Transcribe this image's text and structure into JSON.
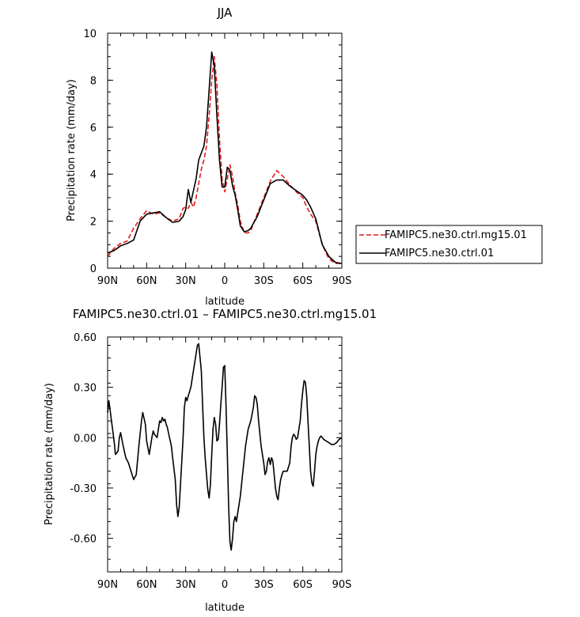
{
  "chart_data": [
    {
      "type": "line",
      "title": "JJA",
      "xlabel": "latitude",
      "ylabel": "Precipitation rate (mm/day)",
      "xlim": [
        90,
        -90
      ],
      "ylim": [
        0,
        10
      ],
      "x_ticks": [
        {
          "value": 90,
          "label": "90N"
        },
        {
          "value": 60,
          "label": "60N"
        },
        {
          "value": 30,
          "label": "30N"
        },
        {
          "value": 0,
          "label": "0"
        },
        {
          "value": -30,
          "label": "30S"
        },
        {
          "value": -60,
          "label": "60S"
        },
        {
          "value": -90,
          "label": "90S"
        }
      ],
      "y_ticks": [
        {
          "value": 0,
          "label": "0"
        },
        {
          "value": 2,
          "label": "2"
        },
        {
          "value": 4,
          "label": "4"
        },
        {
          "value": 6,
          "label": "6"
        },
        {
          "value": 8,
          "label": "8"
        },
        {
          "value": 10,
          "label": "10"
        }
      ],
      "legend_position": "right",
      "series": [
        {
          "name": "FAMIPC5.ne30.ctrl.mg15.01",
          "color": "#e41a1c",
          "style": "dashed",
          "x": [
            90,
            85,
            80,
            75,
            70,
            65,
            60,
            55,
            50,
            45,
            40,
            35,
            32,
            30,
            28,
            26,
            24,
            22,
            20,
            18,
            16,
            14,
            12,
            10,
            8,
            6,
            4,
            2,
            0,
            -2,
            -4,
            -6,
            -8,
            -10,
            -12,
            -15,
            -18,
            -20,
            -25,
            -30,
            -35,
            -40,
            -45,
            -50,
            -55,
            -60,
            -63,
            -66,
            -70,
            -75,
            -80,
            -85,
            -90
          ],
          "y": [
            0.5,
            0.85,
            1.05,
            1.15,
            1.7,
            2.1,
            2.45,
            2.3,
            2.35,
            2.15,
            2.0,
            2.1,
            2.55,
            2.6,
            2.55,
            2.8,
            2.6,
            3.0,
            3.6,
            4.2,
            4.6,
            5.2,
            6.5,
            8.0,
            9.0,
            7.8,
            5.5,
            3.8,
            3.25,
            3.8,
            4.4,
            3.9,
            3.2,
            2.7,
            2.0,
            1.5,
            1.5,
            1.6,
            2.3,
            3.0,
            3.7,
            4.15,
            3.9,
            3.55,
            3.25,
            3.0,
            2.6,
            2.3,
            2.0,
            1.0,
            0.4,
            0.2,
            0.2
          ]
        },
        {
          "name": "FAMIPC5.ne30.ctrl.01",
          "color": "#000000",
          "style": "solid",
          "x": [
            90,
            85,
            80,
            75,
            70,
            65,
            60,
            55,
            50,
            45,
            40,
            35,
            32,
            30,
            28,
            26,
            24,
            22,
            20,
            18,
            16,
            14,
            12,
            10,
            8,
            6,
            4,
            2,
            0,
            -2,
            -4,
            -6,
            -8,
            -10,
            -12,
            -15,
            -18,
            -20,
            -25,
            -30,
            -35,
            -40,
            -45,
            -50,
            -55,
            -60,
            -63,
            -66,
            -70,
            -75,
            -80,
            -85,
            -90
          ],
          "y": [
            0.65,
            0.75,
            0.95,
            1.05,
            1.2,
            2.0,
            2.3,
            2.35,
            2.4,
            2.15,
            1.95,
            2.0,
            2.2,
            2.5,
            3.35,
            2.8,
            3.3,
            3.8,
            4.6,
            4.9,
            5.2,
            6.0,
            7.6,
            9.2,
            8.6,
            6.5,
            4.6,
            3.45,
            3.45,
            4.3,
            4.15,
            3.5,
            3.1,
            2.5,
            1.8,
            1.55,
            1.6,
            1.7,
            2.2,
            2.9,
            3.6,
            3.75,
            3.75,
            3.5,
            3.3,
            3.1,
            2.9,
            2.6,
            2.1,
            1.0,
            0.5,
            0.25,
            0.2
          ]
        }
      ]
    },
    {
      "type": "line",
      "title": "FAMIPC5.ne30.ctrl.01 – FAMIPC5.ne30.ctrl.mg15.01",
      "xlabel": "latitude",
      "ylabel": "Precipitation rate (mm/day)",
      "xlim": [
        90,
        -90
      ],
      "ylim": [
        -0.8,
        0.6
      ],
      "x_ticks": [
        {
          "value": 90,
          "label": "90N"
        },
        {
          "value": 60,
          "label": "60N"
        },
        {
          "value": 30,
          "label": "30N"
        },
        {
          "value": 0,
          "label": "0"
        },
        {
          "value": -30,
          "label": "30S"
        },
        {
          "value": -60,
          "label": "60S"
        },
        {
          "value": -90,
          "label": "90S"
        }
      ],
      "y_ticks": [
        {
          "value": 0.6,
          "label": "0.60"
        },
        {
          "value": 0.3,
          "label": "0.30"
        },
        {
          "value": 0.0,
          "label": "0.00"
        },
        {
          "value": -0.3,
          "label": "-0.30"
        },
        {
          "value": -0.6,
          "label": "-0.60"
        }
      ],
      "series": [
        {
          "color": "#000000",
          "style": "solid",
          "x": [
            90,
            89,
            87,
            85,
            84,
            82,
            81,
            80,
            78,
            76,
            74,
            72,
            70,
            68,
            66,
            64,
            63,
            61,
            60,
            58,
            57,
            56,
            55,
            54,
            52,
            51,
            50,
            49,
            48,
            47,
            46,
            45,
            44,
            43,
            41,
            40,
            38,
            37,
            36,
            35,
            34,
            32,
            31,
            30,
            29,
            28,
            26,
            24,
            22,
            21,
            20,
            18,
            17,
            16,
            15,
            14,
            13,
            12,
            11,
            10,
            9,
            8,
            7,
            6,
            5,
            4,
            3,
            2,
            1,
            0,
            -1,
            -2,
            -3,
            -4,
            -5,
            -6,
            -7,
            -8,
            -9,
            -10,
            -12,
            -14,
            -16,
            -18,
            -20,
            -22,
            -23,
            -24,
            -25,
            -26,
            -28,
            -30,
            -31,
            -32,
            -33,
            -34,
            -35,
            -36,
            -37,
            -38,
            -39,
            -40,
            -41,
            -42,
            -43,
            -44,
            -45,
            -46,
            -48,
            -50,
            -51,
            -52,
            -53,
            -54,
            -55,
            -56,
            -57,
            -58,
            -59,
            -60,
            -61,
            -62,
            -63,
            -64,
            -65,
            -66,
            -67,
            -68,
            -69,
            -70,
            -71,
            -72,
            -73,
            -74,
            -75,
            -76,
            -78,
            -80,
            -82,
            -84,
            -86,
            -88,
            -90
          ],
          "y": [
            0.15,
            0.22,
            0.1,
            -0.02,
            -0.1,
            -0.08,
            0.0,
            0.03,
            -0.05,
            -0.12,
            -0.15,
            -0.2,
            -0.25,
            -0.22,
            -0.05,
            0.1,
            0.15,
            0.08,
            -0.02,
            -0.1,
            -0.05,
            0.0,
            0.04,
            0.02,
            0.0,
            0.05,
            0.1,
            0.09,
            0.12,
            0.1,
            0.11,
            0.08,
            0.06,
            0.02,
            -0.05,
            -0.12,
            -0.25,
            -0.4,
            -0.47,
            -0.42,
            -0.28,
            0.0,
            0.18,
            0.24,
            0.22,
            0.25,
            0.3,
            0.4,
            0.5,
            0.55,
            0.56,
            0.4,
            0.2,
            0.0,
            -0.12,
            -0.22,
            -0.31,
            -0.36,
            -0.28,
            -0.1,
            0.05,
            0.12,
            0.08,
            -0.02,
            -0.01,
            0.08,
            0.2,
            0.3,
            0.42,
            0.43,
            0.2,
            -0.1,
            -0.4,
            -0.62,
            -0.67,
            -0.6,
            -0.5,
            -0.47,
            -0.5,
            -0.45,
            -0.35,
            -0.2,
            -0.05,
            0.05,
            0.1,
            0.18,
            0.25,
            0.24,
            0.2,
            0.1,
            -0.05,
            -0.15,
            -0.22,
            -0.2,
            -0.14,
            -0.12,
            -0.16,
            -0.12,
            -0.14,
            -0.22,
            -0.3,
            -0.35,
            -0.37,
            -0.3,
            -0.25,
            -0.22,
            -0.2,
            -0.2,
            -0.2,
            -0.15,
            -0.05,
            0.0,
            0.02,
            0.01,
            -0.01,
            0.0,
            0.05,
            0.1,
            0.2,
            0.28,
            0.34,
            0.33,
            0.25,
            0.1,
            -0.05,
            -0.2,
            -0.27,
            -0.29,
            -0.2,
            -0.1,
            -0.05,
            -0.02,
            0.0,
            0.01,
            0.0,
            -0.01,
            -0.02,
            -0.03,
            -0.04,
            -0.04,
            -0.03,
            -0.01,
            0.0
          ]
        }
      ]
    }
  ]
}
